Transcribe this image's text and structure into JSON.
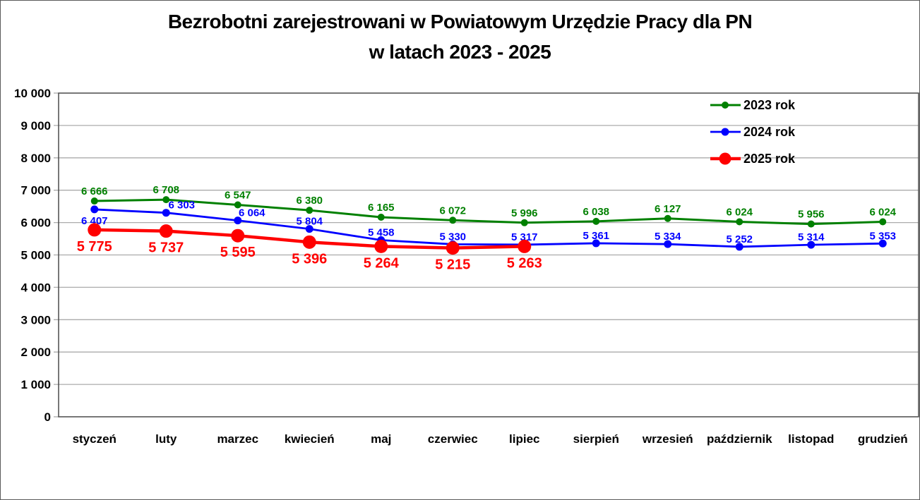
{
  "title": {
    "line1": "Bezrobotni zarejestrowani w Powiatowym Urzędzie Pracy dla PN",
    "line2": "w latach 2023 - 2025"
  },
  "chart_data": {
    "type": "line",
    "title": "Bezrobotni zarejestrowani w Powiatowym Urzędzie Pracy dla PN w latach 2023 - 2025",
    "categories": [
      "styczeń",
      "luty",
      "marzec",
      "kwiecień",
      "maj",
      "czerwiec",
      "lipiec",
      "sierpień",
      "wrzesień",
      "październik",
      "listopad",
      "grudzień"
    ],
    "series": [
      {
        "name": "2023 rok",
        "color": "#008000",
        "values": [
          6666,
          6708,
          6547,
          6380,
          6165,
          6072,
          5996,
          6038,
          6127,
          6024,
          5956,
          6024
        ]
      },
      {
        "name": "2024 rok",
        "color": "#0000FF",
        "values": [
          6407,
          6303,
          6064,
          5804,
          5458,
          5330,
          5317,
          5361,
          5334,
          5252,
          5314,
          5353
        ]
      },
      {
        "name": "2025 rok",
        "color": "#FF0000",
        "values": [
          5775,
          5737,
          5595,
          5396,
          5264,
          5215,
          5263,
          null,
          null,
          null,
          null,
          null
        ]
      }
    ],
    "xlabel": "",
    "ylabel": "",
    "ylim": [
      0,
      10000
    ],
    "ytick_step": 1000,
    "ytick_labels": [
      "0",
      "1 000",
      "2 000",
      "3 000",
      "4 000",
      "5 000",
      "6 000",
      "7 000",
      "8 000",
      "9 000",
      "10 000"
    ],
    "grid": true,
    "legend_position": "top-right",
    "data_labels": true,
    "number_format": "space-thousands",
    "gridline_color": "#ABABAB",
    "plot_border_color": "#4a4a4a",
    "axis_text_color": "#000000",
    "background_color": "#FFFFFF"
  }
}
